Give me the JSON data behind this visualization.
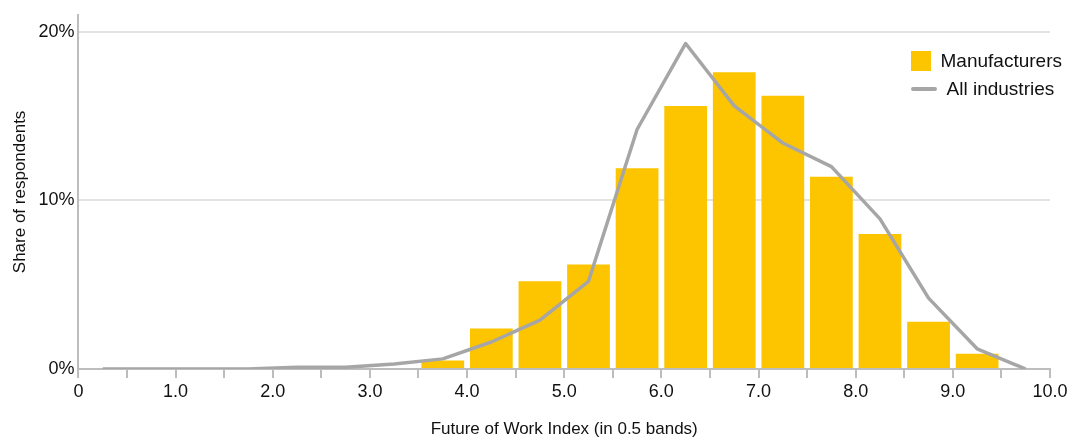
{
  "chart_data": {
    "type": "histogram",
    "xlabel": "Future of Work Index (in 0.5 bands)",
    "ylabel": "Share of respondents",
    "xlim": [
      0,
      10
    ],
    "xticks": [
      {
        "value": 0,
        "label": "0"
      },
      {
        "value": 0.5,
        "label": null
      },
      {
        "value": 1,
        "label": "1.0"
      },
      {
        "value": 1.5,
        "label": null
      },
      {
        "value": 2,
        "label": "2.0"
      },
      {
        "value": 2.5,
        "label": null
      },
      {
        "value": 3,
        "label": "3.0"
      },
      {
        "value": 3.5,
        "label": null
      },
      {
        "value": 4,
        "label": "4.0"
      },
      {
        "value": 4.5,
        "label": null
      },
      {
        "value": 5,
        "label": "5.0"
      },
      {
        "value": 5.5,
        "label": null
      },
      {
        "value": 6,
        "label": "6.0"
      },
      {
        "value": 6.5,
        "label": null
      },
      {
        "value": 7,
        "label": "7.0"
      },
      {
        "value": 7.5,
        "label": null
      },
      {
        "value": 8,
        "label": "8.0"
      },
      {
        "value": 8.5,
        "label": null
      },
      {
        "value": 9,
        "label": "9.0"
      },
      {
        "value": 9.5,
        "label": null
      },
      {
        "value": 10,
        "label": "10.0"
      }
    ],
    "ylim": [
      0,
      21
    ],
    "yticks": [
      {
        "value": 0,
        "label": "0%"
      },
      {
        "value": 10,
        "label": "10%"
      },
      {
        "value": 20,
        "label": "20%"
      }
    ],
    "grid": "y",
    "legend": "top right",
    "series": [
      {
        "name": "Manufacturers",
        "color": "#fdc500",
        "bins": [
          3.5,
          4,
          4.5,
          5,
          5.5,
          6,
          6.5,
          7,
          7.5,
          8,
          8.5,
          9,
          9.5
        ],
        "values": [
          0.5,
          2.4,
          5.2,
          6.2,
          11.9,
          15.6,
          17.6,
          16.2,
          11.4,
          8.0,
          2.8,
          0.9
        ]
      },
      {
        "name": "All industries",
        "type": "line",
        "color": "#a6a6a6",
        "x": [
          0.25,
          0.75,
          1.25,
          1.75,
          2.25,
          2.75,
          3.25,
          3.75,
          4.25,
          4.75,
          5.25,
          5.75,
          6.25,
          6.75,
          7.25,
          7.75,
          8.25,
          8.75,
          9.25,
          9.75
        ],
        "values": [
          0,
          0,
          0,
          0,
          0.1,
          0.1,
          0.3,
          0.6,
          1.6,
          2.9,
          5.2,
          14.2,
          19.3,
          15.6,
          13.4,
          12.0,
          8.9,
          4.2,
          1.2,
          0
        ]
      }
    ]
  }
}
